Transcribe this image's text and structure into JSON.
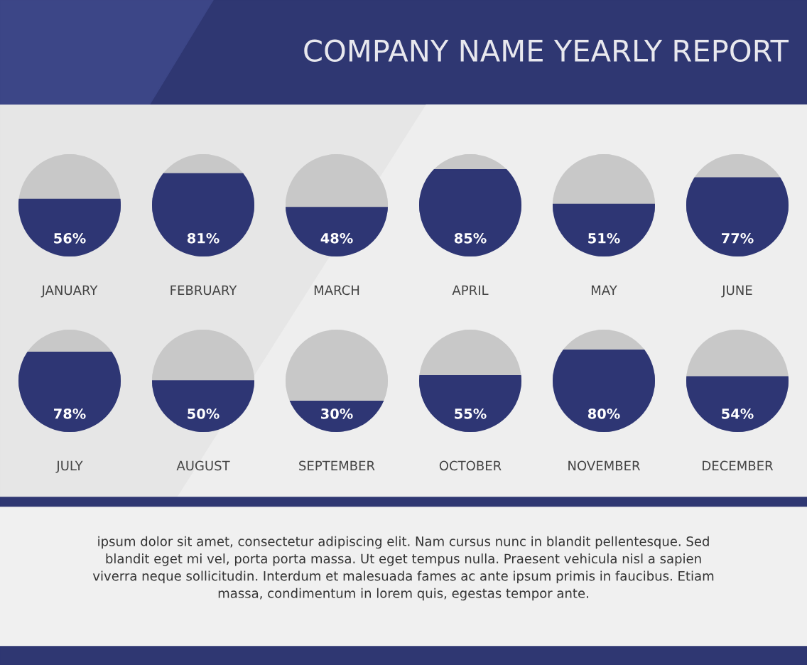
{
  "chart_data": {
    "type": "other",
    "title": "COMPANY NAME YEARLY REPORT",
    "categories": [
      "JANUARY",
      "FEBRUARY",
      "MARCH",
      "APRIL",
      "MAY",
      "JUNE",
      "JULY",
      "AUGUST",
      "SEPTEMBER",
      "OCTOBER",
      "NOVEMBER",
      "DECEMBER"
    ],
    "values": [
      56,
      81,
      48,
      85,
      51,
      77,
      78,
      50,
      30,
      55,
      80,
      54
    ],
    "value_labels": [
      "56%",
      "81%",
      "48%",
      "85%",
      "51%",
      "77%",
      "78%",
      "50%",
      "30%",
      "55%",
      "80%",
      "54%"
    ],
    "color": "#2e3674",
    "annotations": [
      "ipsum dolor sit amet, consectetur adipiscing elit. Nam cursus nunc in blandit pellentesque. Sed\nblandit eget mi vel, porta porta massa. Ut eget tempus nulla. Praesent vehicula nisl a sapien\nviverra neque sollicitudin. Interdum et malesuada fames ac ante ipsum primis in faucibus. Etiam\nmassa, condimentum in lorem quis, egestas tempor ante."
    ]
  }
}
